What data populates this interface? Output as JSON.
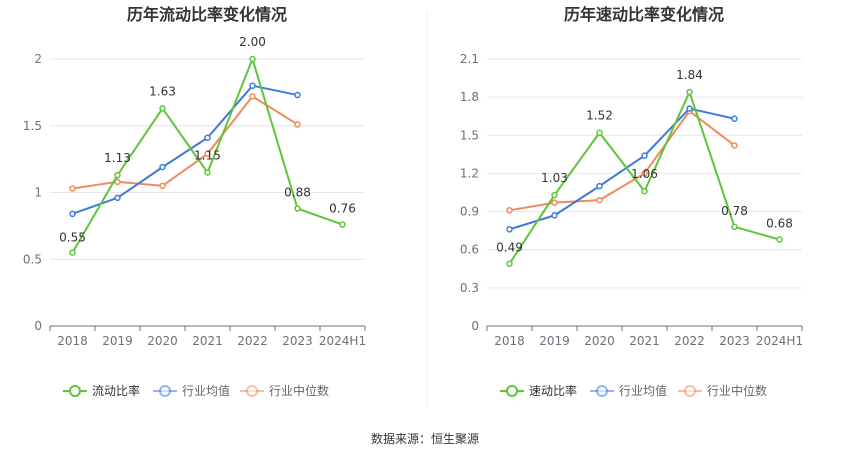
{
  "source_text": "数据来源：恒生聚源",
  "colors": {
    "current": "#5ec53b",
    "avg": "#3f7bd9",
    "median": "#f08a5d",
    "grid": "#e4e6ef",
    "axis": "#6e7079",
    "text": "#333333"
  },
  "chart_data": [
    {
      "type": "line",
      "title": "历年流动比率变化情况",
      "categories": [
        "2018",
        "2019",
        "2020",
        "2021",
        "2022",
        "2023",
        "2024H1"
      ],
      "ylim": [
        0,
        2
      ],
      "yticks": [
        "0",
        "0.5",
        "1",
        "1.5",
        "2"
      ],
      "grid": true,
      "legend_position": "bottom",
      "series": [
        {
          "name": "流动比率",
          "color_key": "current",
          "values": [
            0.55,
            1.13,
            1.63,
            1.15,
            2.0,
            0.88,
            0.76
          ],
          "labels": [
            "0.55",
            "1.13",
            "1.63",
            "1.15",
            "2.00",
            "0.88",
            "0.76"
          ]
        },
        {
          "name": "行业均值",
          "color_key": "avg",
          "values": [
            0.84,
            0.96,
            1.19,
            1.41,
            1.8,
            1.73,
            null
          ]
        },
        {
          "name": "行业中位数",
          "color_key": "median",
          "values": [
            1.03,
            1.08,
            1.05,
            1.29,
            1.72,
            1.51,
            null
          ]
        }
      ]
    },
    {
      "type": "line",
      "title": "历年速动比率变化情况",
      "categories": [
        "2018",
        "2019",
        "2020",
        "2021",
        "2022",
        "2023",
        "2024H1"
      ],
      "ylim": [
        0,
        2.1
      ],
      "yticks": [
        "0",
        "0.3",
        "0.6",
        "0.9",
        "1.2",
        "1.5",
        "1.8",
        "2.1"
      ],
      "grid": true,
      "legend_position": "bottom",
      "series": [
        {
          "name": "速动比率",
          "color_key": "current",
          "values": [
            0.49,
            1.03,
            1.52,
            1.06,
            1.84,
            0.78,
            0.68
          ],
          "labels": [
            "0.49",
            "1.03",
            "1.52",
            "1.06",
            "1.84",
            "0.78",
            "0.68"
          ]
        },
        {
          "name": "行业均值",
          "color_key": "avg",
          "values": [
            0.76,
            0.87,
            1.1,
            1.34,
            1.71,
            1.63,
            null
          ]
        },
        {
          "name": "行业中位数",
          "color_key": "median",
          "values": [
            0.91,
            0.97,
            0.99,
            1.2,
            1.69,
            1.42,
            null
          ]
        }
      ]
    }
  ]
}
